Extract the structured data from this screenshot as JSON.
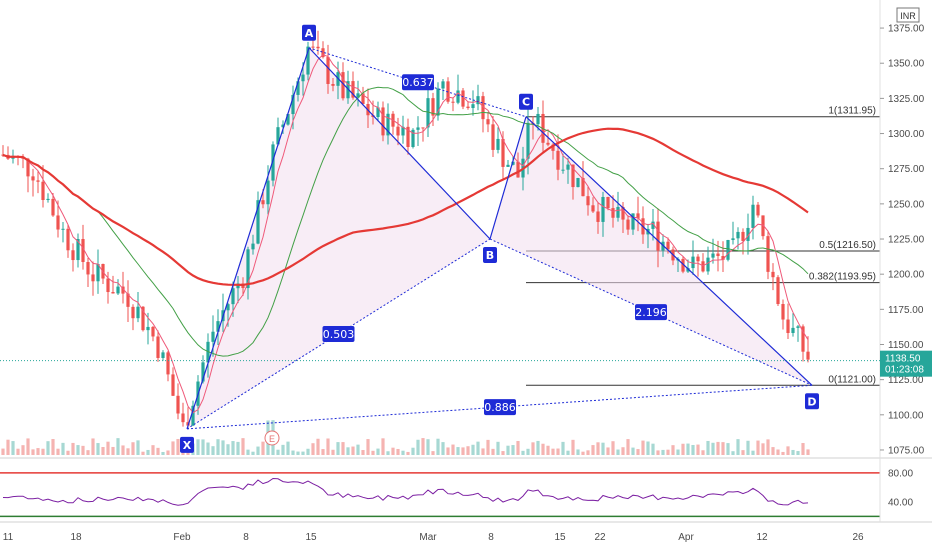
{
  "currency_badge": "INR",
  "chart_data": {
    "type": "candlestick",
    "price_axis": {
      "ticks": [
        "1375.00",
        "1350.00",
        "1325.00",
        "1300.00",
        "1275.00",
        "1250.00",
        "1225.00",
        "1200.00",
        "1175.00",
        "1150.00",
        "1125.00",
        "1100.00",
        "1075.00"
      ],
      "tick_values": [
        1375,
        1350,
        1325,
        1300,
        1275,
        1250,
        1225,
        1200,
        1175,
        1150,
        1125,
        1100,
        1075
      ],
      "range": [
        1070,
        1385
      ]
    },
    "rsi_axis": {
      "ticks": [
        "80.00",
        "40.00"
      ],
      "tick_values": [
        80,
        40
      ],
      "range": [
        15,
        95
      ],
      "upper_band": 80,
      "lower_band": 20
    },
    "time_axis": [
      "11",
      "18",
      "Feb",
      "8",
      "15",
      "Mar",
      "8",
      "15",
      "22",
      "Apr",
      "12",
      "26"
    ],
    "last_price": "1138.50",
    "countdown": "01:23:08",
    "fib_levels": [
      {
        "label": "1(1311.95)",
        "value": 1311.95
      },
      {
        "label": "0.5(1216.50)",
        "value": 1216.5
      },
      {
        "label": "0.382(1193.95)",
        "value": 1193.95
      },
      {
        "label": "0(1121.00)",
        "value": 1121.0
      }
    ],
    "pattern_points": [
      {
        "name": "X",
        "value": 1090
      },
      {
        "name": "A",
        "value": 1361
      },
      {
        "name": "B",
        "value": 1225
      },
      {
        "name": "C",
        "value": 1311.95
      },
      {
        "name": "D",
        "value": 1121
      }
    ],
    "ratios": [
      "0.637",
      "0.503",
      "2.196",
      "0.886"
    ],
    "colors": {
      "up": "#26a69a",
      "down": "#ef5350",
      "ma_slow": "#e53935",
      "ma_mid": "#43a047",
      "ma_fast": "#ef5a7a",
      "pattern": "#1e2bd6",
      "rsi": "#7b1fa2"
    }
  }
}
